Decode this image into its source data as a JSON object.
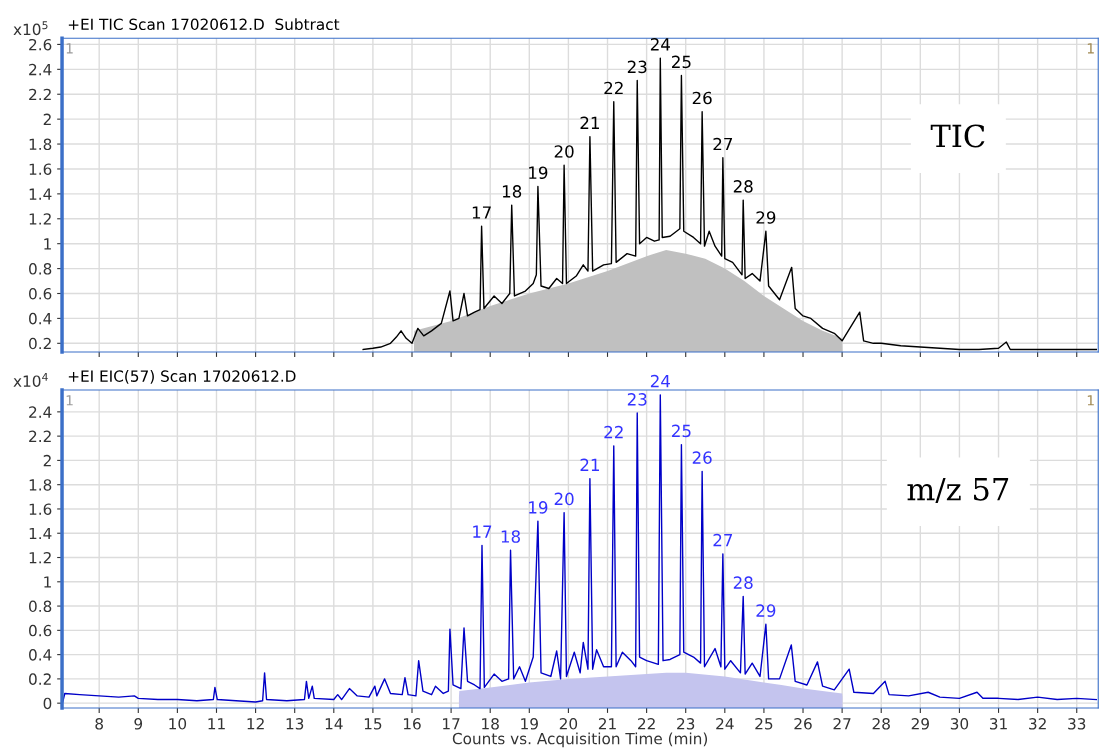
{
  "chart_data": [
    {
      "type": "line",
      "title": "+EI TIC Scan 17020612.D  Subtract",
      "ylabel": "x10$^{5}$",
      "xlim": [
        7.05,
        33.55
      ],
      "xticks": [
        8,
        9,
        10,
        11,
        12,
        13,
        14,
        15,
        16,
        17,
        18,
        19,
        20,
        21,
        22,
        23,
        24,
        25,
        26,
        27,
        28,
        29,
        30,
        31,
        32,
        33
      ],
      "ylim": [
        0.13,
        2.65
      ],
      "yticks": [
        0.2,
        0.4,
        0.6,
        0.8,
        1,
        1.2,
        1.4,
        1.6,
        1.8,
        2,
        2.2,
        2.4,
        2.6
      ],
      "tick_labels": "y",
      "grid": true,
      "series": [
        {
          "type": "area",
          "color": "#c0c0c0",
          "x": [
            16.05,
            16.06,
            17,
            18,
            19,
            20,
            21,
            22,
            22.5,
            23,
            23.5,
            24,
            24.5,
            25,
            25.5,
            26,
            26.5,
            27.0,
            27.01
          ],
          "values": [
            0.15,
            0.3,
            0.38,
            0.5,
            0.6,
            0.68,
            0.78,
            0.9,
            0.95,
            0.92,
            0.88,
            0.8,
            0.7,
            0.58,
            0.48,
            0.38,
            0.3,
            0.24,
            0.15
          ]
        },
        {
          "color": "#000000",
          "x": [
            14.75,
            15.0,
            15.2,
            15.45,
            15.6,
            15.72,
            15.85,
            16.0,
            16.15,
            16.3,
            16.5,
            16.75,
            16.97,
            17.05,
            17.2,
            17.33,
            17.42,
            17.6,
            17.74,
            17.78,
            17.84,
            18.1,
            18.3,
            18.5,
            18.55,
            18.62,
            18.9,
            19.1,
            19.18,
            19.22,
            19.3,
            19.5,
            19.7,
            19.85,
            19.89,
            19.95,
            20.2,
            20.38,
            20.5,
            20.55,
            20.62,
            20.9,
            21.1,
            21.16,
            21.22,
            21.5,
            21.72,
            21.76,
            21.82,
            22.0,
            22.2,
            22.32,
            22.35,
            22.4,
            22.6,
            22.85,
            22.89,
            22.95,
            23.2,
            23.38,
            23.42,
            23.48,
            23.6,
            23.75,
            23.92,
            23.95,
            24.0,
            24.2,
            24.44,
            24.47,
            24.52,
            24.7,
            24.9,
            25.05,
            25.12,
            25.4,
            25.71,
            25.8,
            26.0,
            26.2,
            26.5,
            26.8,
            27.0,
            27.45,
            27.55,
            27.8,
            28.0,
            28.5,
            29.0,
            29.5,
            30.0,
            30.5,
            31.0,
            31.2,
            31.3,
            32.0,
            33.0,
            33.5
          ],
          "values": [
            0.15,
            0.16,
            0.17,
            0.2,
            0.25,
            0.3,
            0.24,
            0.2,
            0.32,
            0.26,
            0.3,
            0.36,
            0.62,
            0.38,
            0.4,
            0.6,
            0.42,
            0.45,
            0.47,
            1.14,
            0.48,
            0.58,
            0.52,
            0.6,
            1.31,
            0.58,
            0.62,
            0.68,
            0.75,
            1.46,
            0.66,
            0.64,
            0.72,
            0.68,
            1.63,
            0.68,
            0.74,
            0.83,
            0.78,
            1.86,
            0.78,
            0.83,
            0.84,
            2.14,
            0.85,
            0.92,
            0.9,
            2.31,
            1.0,
            1.05,
            1.02,
            1.03,
            2.49,
            1.05,
            1.06,
            1.12,
            2.35,
            1.1,
            1.05,
            1.0,
            2.06,
            0.98,
            1.1,
            0.98,
            0.9,
            1.69,
            0.88,
            0.85,
            0.75,
            1.35,
            0.72,
            0.76,
            0.7,
            1.1,
            0.66,
            0.55,
            0.81,
            0.48,
            0.42,
            0.4,
            0.32,
            0.28,
            0.22,
            0.45,
            0.22,
            0.2,
            0.2,
            0.18,
            0.17,
            0.16,
            0.15,
            0.15,
            0.16,
            0.21,
            0.15,
            0.15,
            0.15,
            0.15
          ]
        }
      ],
      "annotations": [
        {
          "text": "17",
          "x": 17.78,
          "y": 1.14
        },
        {
          "text": "18",
          "x": 18.55,
          "y": 1.31
        },
        {
          "text": "19",
          "x": 19.22,
          "y": 1.46
        },
        {
          "text": "20",
          "x": 19.89,
          "y": 1.63
        },
        {
          "text": "21",
          "x": 20.55,
          "y": 1.86
        },
        {
          "text": "22",
          "x": 21.16,
          "y": 2.14
        },
        {
          "text": "23",
          "x": 21.76,
          "y": 2.31
        },
        {
          "text": "24",
          "x": 22.35,
          "y": 2.49
        },
        {
          "text": "25",
          "x": 22.89,
          "y": 2.35
        },
        {
          "text": "26",
          "x": 23.42,
          "y": 2.06
        },
        {
          "text": "27",
          "x": 23.95,
          "y": 1.69
        },
        {
          "text": "28",
          "x": 24.47,
          "y": 1.35
        },
        {
          "text": "29",
          "x": 25.05,
          "y": 1.1
        },
        "TIC",
        "1",
        "1"
      ]
    },
    {
      "type": "line",
      "title": "+EI EIC(57) Scan 17020612.D",
      "ylabel": "x10$^{4}$",
      "xlabel": "Counts vs. Acquisition Time (min)",
      "xlim": [
        7.05,
        33.55
      ],
      "xticks": [
        8,
        9,
        10,
        11,
        12,
        13,
        14,
        15,
        16,
        17,
        18,
        19,
        20,
        21,
        22,
        23,
        24,
        25,
        26,
        27,
        28,
        29,
        30,
        31,
        32,
        33
      ],
      "ylim": [
        -0.04,
        2.58
      ],
      "yticks": [
        0,
        0.2,
        0.4,
        0.6,
        0.8,
        1,
        1.2,
        1.4,
        1.6,
        1.8,
        2,
        2.2,
        2.4
      ],
      "grid": true,
      "series": [
        {
          "type": "area",
          "color": "#c4c4ee",
          "x": [
            17.2,
            17.21,
            18,
            19,
            20,
            21,
            22,
            22.5,
            23,
            24,
            25,
            25.45,
            26,
            26.5,
            27.0,
            27.01
          ],
          "values": [
            0.05,
            0.1,
            0.13,
            0.17,
            0.2,
            0.22,
            0.24,
            0.25,
            0.25,
            0.22,
            0.17,
            0.15,
            0.12,
            0.1,
            0.08,
            0.05
          ]
        },
        {
          "color": "#0000c8",
          "x": [
            7.06,
            7.12,
            7.5,
            8,
            8.5,
            8.9,
            9,
            9.5,
            10,
            10.5,
            10.92,
            10.96,
            11.02,
            11.5,
            12,
            12.18,
            12.23,
            12.28,
            12.8,
            13.25,
            13.3,
            13.36,
            13.45,
            13.5,
            14,
            14.1,
            14.2,
            14.4,
            14.6,
            14.9,
            15.05,
            15.1,
            15.3,
            15.45,
            15.75,
            15.82,
            15.9,
            16.1,
            16.17,
            16.28,
            16.5,
            16.6,
            16.8,
            16.93,
            16.97,
            17.05,
            17.25,
            17.33,
            17.42,
            17.6,
            17.74,
            17.79,
            17.85,
            18.1,
            18.3,
            18.47,
            18.52,
            18.6,
            18.75,
            18.9,
            19.1,
            19.22,
            19.3,
            19.55,
            19.7,
            19.8,
            19.89,
            19.95,
            20.15,
            20.3,
            20.38,
            20.5,
            20.55,
            20.62,
            20.72,
            20.9,
            21.1,
            21.16,
            21.22,
            21.38,
            21.6,
            21.72,
            21.76,
            21.82,
            22.0,
            22.3,
            22.35,
            22.42,
            22.6,
            22.85,
            22.89,
            22.95,
            23.2,
            23.38,
            23.42,
            23.48,
            23.75,
            23.9,
            23.95,
            24.0,
            24.15,
            24.4,
            24.47,
            24.52,
            24.7,
            24.9,
            25.05,
            25.12,
            25.4,
            25.7,
            25.8,
            26.1,
            26.37,
            26.5,
            26.8,
            27.18,
            27.3,
            27.8,
            28.1,
            28.2,
            28.7,
            29.2,
            29.5,
            30.0,
            30.45,
            30.6,
            31.0,
            31.5,
            32.0,
            32.5,
            33.0,
            33.5
          ],
          "values": [
            0.0,
            0.08,
            0.07,
            0.06,
            0.05,
            0.06,
            0.04,
            0.03,
            0.03,
            0.02,
            0.03,
            0.13,
            0.03,
            0.02,
            0.01,
            0.02,
            0.25,
            0.03,
            0.02,
            0.03,
            0.18,
            0.04,
            0.14,
            0.04,
            0.03,
            0.07,
            0.03,
            0.12,
            0.06,
            0.05,
            0.14,
            0.06,
            0.2,
            0.08,
            0.07,
            0.21,
            0.07,
            0.06,
            0.35,
            0.1,
            0.07,
            0.14,
            0.08,
            0.1,
            0.61,
            0.15,
            0.12,
            0.62,
            0.18,
            0.15,
            0.12,
            1.3,
            0.13,
            0.24,
            0.18,
            0.2,
            1.26,
            0.2,
            0.3,
            0.18,
            0.38,
            1.5,
            0.25,
            0.22,
            0.43,
            0.2,
            1.57,
            0.22,
            0.42,
            0.25,
            0.5,
            0.28,
            1.85,
            0.28,
            0.44,
            0.3,
            0.3,
            2.12,
            0.3,
            0.42,
            0.35,
            0.3,
            2.39,
            0.38,
            0.35,
            0.32,
            2.54,
            0.35,
            0.36,
            0.4,
            2.13,
            0.42,
            0.38,
            0.33,
            1.91,
            0.3,
            0.45,
            0.3,
            1.23,
            0.28,
            0.35,
            0.25,
            0.88,
            0.24,
            0.33,
            0.22,
            0.65,
            0.2,
            0.2,
            0.48,
            0.18,
            0.15,
            0.34,
            0.14,
            0.11,
            0.28,
            0.09,
            0.08,
            0.18,
            0.07,
            0.06,
            0.09,
            0.05,
            0.04,
            0.09,
            0.04,
            0.04,
            0.03,
            0.05,
            0.03,
            0.04,
            0.03
          ]
        }
      ],
      "annotations": [
        {
          "text": "17",
          "x": 17.79,
          "y": 1.3
        },
        {
          "text": "18",
          "x": 18.52,
          "y": 1.26
        },
        {
          "text": "19",
          "x": 19.22,
          "y": 1.5
        },
        {
          "text": "20",
          "x": 19.89,
          "y": 1.57
        },
        {
          "text": "21",
          "x": 20.55,
          "y": 1.85
        },
        {
          "text": "22",
          "x": 21.16,
          "y": 2.12
        },
        {
          "text": "23",
          "x": 21.76,
          "y": 2.39
        },
        {
          "text": "24",
          "x": 22.35,
          "y": 2.54
        },
        {
          "text": "25",
          "x": 22.89,
          "y": 2.13
        },
        {
          "text": "26",
          "x": 23.42,
          "y": 1.91
        },
        {
          "text": "27",
          "x": 23.95,
          "y": 1.23
        },
        {
          "text": "28",
          "x": 24.47,
          "y": 0.88
        },
        {
          "text": "29",
          "x": 25.05,
          "y": 0.65
        },
        "m/z 57",
        "1",
        "1"
      ]
    }
  ]
}
